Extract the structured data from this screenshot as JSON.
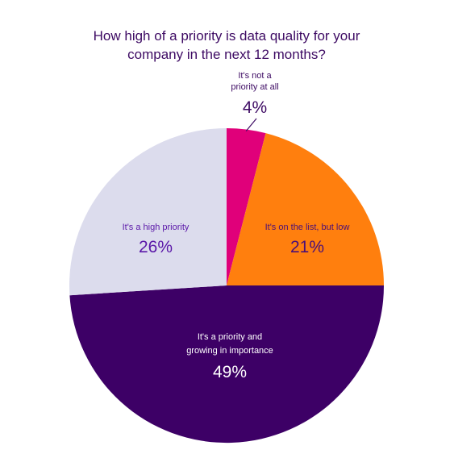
{
  "chart_data": {
    "type": "pie",
    "title_lines": [
      "How high of a priority is data quality for your",
      "company in the next 12 months?"
    ],
    "slices": [
      {
        "label_lines": [
          "It's not a",
          "priority at all"
        ],
        "value": 4,
        "value_label": "4%",
        "color": "#e0007a",
        "text_color": "#3d0a63"
      },
      {
        "label_lines": [
          "It's on the list, but low"
        ],
        "value": 21,
        "value_label": "21%",
        "color": "#ff7f0e",
        "text_color": "#4a0f78"
      },
      {
        "label_lines": [
          "It's a priority and",
          "growing in importance"
        ],
        "value": 49,
        "value_label": "49%",
        "color": "#3d0066",
        "text_color": "#ffffff"
      },
      {
        "label_lines": [
          "It's a high priority"
        ],
        "value": 26,
        "value_label": "26%",
        "color": "#dcdced",
        "text_color": "#5a17a8"
      }
    ]
  }
}
